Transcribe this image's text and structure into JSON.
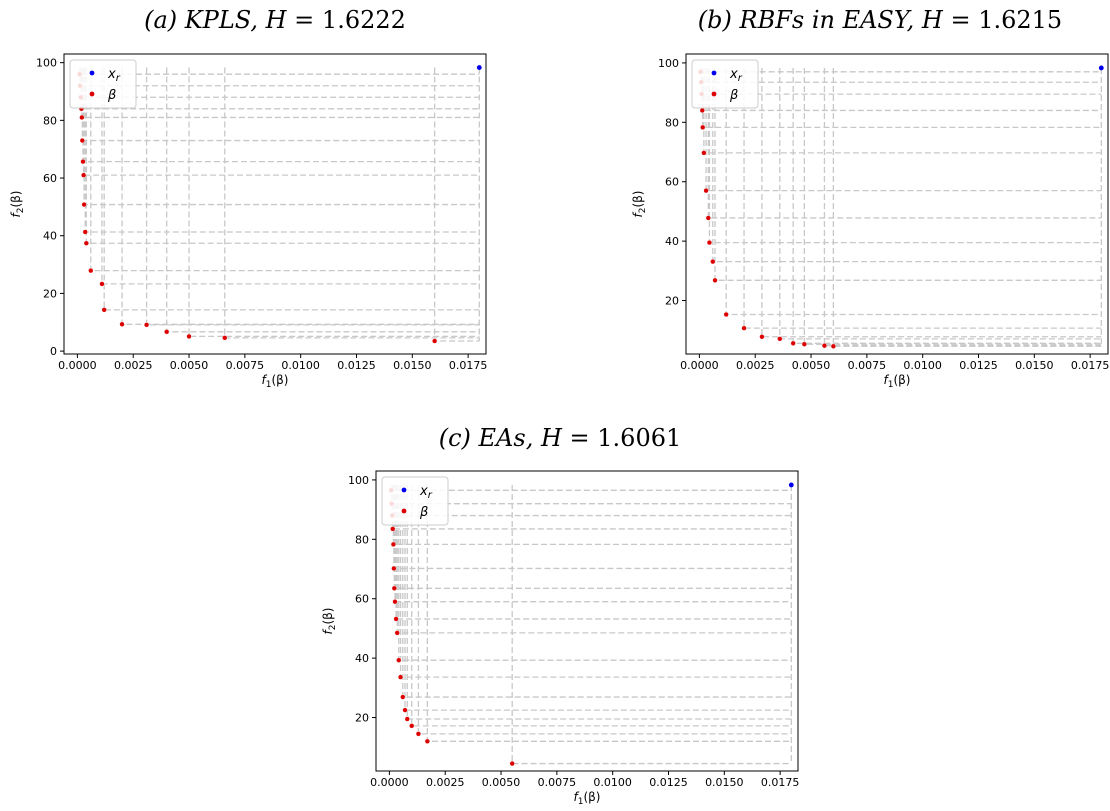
{
  "legend": {
    "ref_label": "x",
    "ref_sub": "r",
    "pts_label": "β"
  },
  "colors": {
    "ref": "#0000ee",
    "pts": "#dd0000",
    "lines": "#c8c8c8",
    "axis": "#000000"
  },
  "axis_labels": {
    "x": {
      "main": "f",
      "sub": "1",
      "rest": "(β)"
    },
    "y": {
      "main": "f",
      "sub": "2",
      "rest": "(β)"
    }
  },
  "chart_data": [
    {
      "type": "scatter",
      "title": {
        "label": "(a) KPLS,",
        "metric": "H",
        "eq": " = ",
        "value": "1.6222"
      },
      "xlim": [
        -0.0006,
        0.0183
      ],
      "ylim": [
        -1,
        103
      ],
      "x_ticks": [
        "0.0000",
        "0.0025",
        "0.0050",
        "0.0075",
        "0.0100",
        "0.0125",
        "0.0150",
        "0.0175"
      ],
      "y_ticks": [
        0,
        20,
        40,
        60,
        80,
        100
      ],
      "reference_point": [
        0.018,
        98.3
      ],
      "points": [
        [
          0.0001,
          96
        ],
        [
          0.00012,
          92
        ],
        [
          0.00015,
          88
        ],
        [
          0.00018,
          84
        ],
        [
          0.0002,
          81
        ],
        [
          0.00022,
          73
        ],
        [
          0.00025,
          65.7
        ],
        [
          0.00028,
          61
        ],
        [
          0.0003,
          50.8
        ],
        [
          0.00035,
          41.3
        ],
        [
          0.0004,
          37.4
        ],
        [
          0.0006,
          27.9
        ],
        [
          0.0011,
          23.3
        ],
        [
          0.0012,
          14.3
        ],
        [
          0.002,
          9.3
        ],
        [
          0.0031,
          9.1
        ],
        [
          0.004,
          6.7
        ],
        [
          0.005,
          5.1
        ],
        [
          0.0066,
          4.6
        ],
        [
          0.016,
          3.5
        ]
      ]
    },
    {
      "type": "scatter",
      "title": {
        "label": "(b) RBFs in EASY,",
        "metric": "H",
        "eq": " = ",
        "value": "1.6215"
      },
      "xlim": [
        -0.0006,
        0.0183
      ],
      "ylim": [
        2,
        103
      ],
      "x_ticks": [
        "0.0000",
        "0.0025",
        "0.0050",
        "0.0075",
        "0.0100",
        "0.0125",
        "0.0150",
        "0.0175"
      ],
      "y_ticks": [
        20,
        40,
        60,
        80,
        100
      ],
      "reference_point": [
        0.018,
        98.3
      ],
      "points": [
        [
          5e-05,
          97
        ],
        [
          8e-05,
          93.5
        ],
        [
          0.0001,
          89.5
        ],
        [
          0.00013,
          84
        ],
        [
          0.00015,
          78.3
        ],
        [
          0.0002,
          69.7
        ],
        [
          0.0003,
          57
        ],
        [
          0.0004,
          47.8
        ],
        [
          0.00045,
          39.5
        ],
        [
          0.0006,
          33.1
        ],
        [
          0.0007,
          26.8
        ],
        [
          0.0012,
          15.3
        ],
        [
          0.002,
          10.7
        ],
        [
          0.0028,
          7.8
        ],
        [
          0.0036,
          7.1
        ],
        [
          0.0042,
          5.6
        ],
        [
          0.0047,
          5.3
        ],
        [
          0.0056,
          4.8
        ],
        [
          0.006,
          4.6
        ]
      ]
    },
    {
      "type": "scatter",
      "title": {
        "label": "(c) EAs,",
        "metric": "H",
        "eq": " = ",
        "value": "1.6061"
      },
      "xlim": [
        -0.0006,
        0.0183
      ],
      "ylim": [
        2,
        103
      ],
      "x_ticks": [
        "0.0000",
        "0.0025",
        "0.0050",
        "0.0075",
        "0.0100",
        "0.0125",
        "0.0150",
        "0.0175"
      ],
      "y_ticks": [
        20,
        40,
        60,
        80,
        100
      ],
      "reference_point": [
        0.018,
        98.3
      ],
      "points": [
        [
          8e-05,
          96.5
        ],
        [
          0.0001,
          92
        ],
        [
          0.00013,
          88
        ],
        [
          0.00015,
          83.5
        ],
        [
          0.00018,
          78.3
        ],
        [
          0.0002,
          70.2
        ],
        [
          0.00022,
          63.5
        ],
        [
          0.00025,
          59
        ],
        [
          0.0003,
          53.2
        ],
        [
          0.00035,
          48.5
        ],
        [
          0.00042,
          39.3
        ],
        [
          0.0005,
          33.6
        ],
        [
          0.0006,
          26.9
        ],
        [
          0.0007,
          22.5
        ],
        [
          0.0008,
          19.5
        ],
        [
          0.001,
          17.2
        ],
        [
          0.0013,
          14.5
        ],
        [
          0.0017,
          12
        ],
        [
          0.0055,
          4.5
        ]
      ]
    }
  ]
}
